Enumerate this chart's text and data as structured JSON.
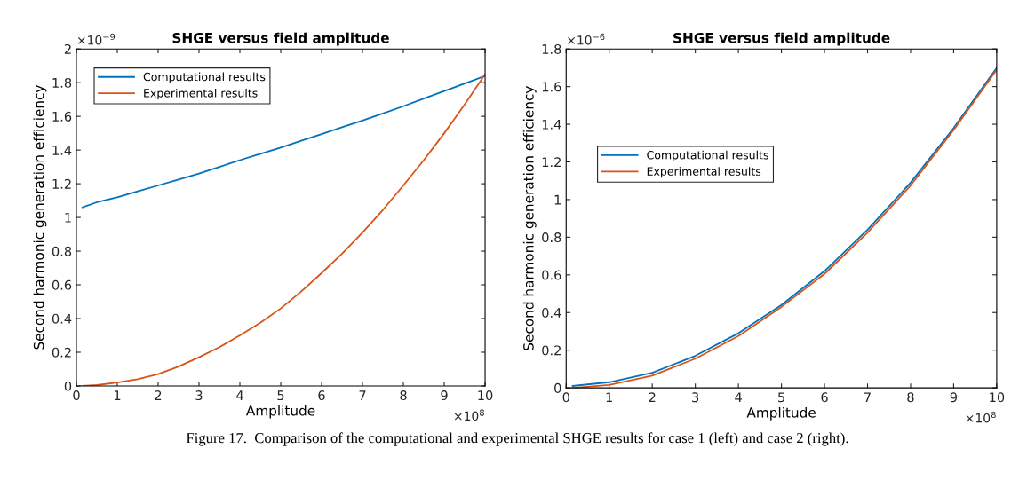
{
  "chart_data": [
    {
      "type": "line",
      "title": "SHGE versus field amplitude",
      "xlabel": "Amplitude",
      "ylabel": "Second harmonic generation efficiency",
      "xlim": [
        0,
        10
      ],
      "ylim": [
        0,
        2
      ],
      "xticks": [
        0,
        1,
        2,
        3,
        4,
        5,
        6,
        7,
        8,
        9,
        10
      ],
      "yticks": [
        0,
        0.2,
        0.4,
        0.6,
        0.8,
        1,
        1.2,
        1.4,
        1.6,
        1.8,
        2
      ],
      "legend": "top left",
      "grid": false,
      "x": [
        0.15,
        0.5,
        1,
        1.5,
        2,
        2.5,
        3,
        3.5,
        4,
        4.5,
        5,
        5.5,
        6,
        6.5,
        7,
        7.5,
        8,
        8.5,
        9,
        9.5,
        10
      ],
      "series": [
        {
          "name": "Computational results",
          "color": "#0072bd",
          "values": [
            1.06,
            1.09,
            1.12,
            1.155,
            1.19,
            1.225,
            1.26,
            1.3,
            1.34,
            1.377,
            1.415,
            1.455,
            1.495,
            1.535,
            1.575,
            1.617,
            1.66,
            1.705,
            1.75,
            1.795,
            1.84
          ]
        },
        {
          "name": "Experimental results",
          "color": "#d95319",
          "values": [
            0,
            0.005,
            0.02,
            0.04,
            0.07,
            0.115,
            0.17,
            0.23,
            0.3,
            0.375,
            0.46,
            0.56,
            0.67,
            0.785,
            0.91,
            1.045,
            1.19,
            1.34,
            1.5,
            1.67,
            1.85
          ]
        }
      ],
      "annotations": [
        "×10$^{−9}$",
        "×10$^{8}$",
        "Figure 17.  Comparison of the computational and experimental SHGE results for case 1 (left) and case 2 (right)."
      ]
    },
    {
      "type": "line",
      "title": "SHGE versus field amplitude",
      "xlabel": "Amplitude",
      "ylabel": "Second harmonic generation efficiency",
      "xlim": [
        0,
        10
      ],
      "ylim": [
        0,
        1.8
      ],
      "xticks": [
        0,
        1,
        2,
        3,
        4,
        5,
        6,
        7,
        8,
        9,
        10
      ],
      "yticks": [
        0,
        0.2,
        0.4,
        0.6,
        0.8,
        1,
        1.2,
        1.4,
        1.6,
        1.8
      ],
      "legend": "left",
      "grid": false,
      "x": [
        0.15,
        1,
        2,
        3,
        4,
        5,
        6,
        7,
        8,
        9,
        10
      ],
      "series": [
        {
          "name": "Computational results",
          "color": "#0072bd",
          "values": [
            0.01,
            0.03,
            0.08,
            0.17,
            0.29,
            0.44,
            0.62,
            0.84,
            1.09,
            1.38,
            1.7
          ]
        },
        {
          "name": "Experimental results",
          "color": "#d95319",
          "values": [
            0,
            0.015,
            0.065,
            0.155,
            0.275,
            0.43,
            0.605,
            0.825,
            1.075,
            1.37,
            1.69
          ]
        }
      ],
      "annotations": [
        "×10$^{−6}$",
        "×10$^{8}$"
      ]
    }
  ]
}
